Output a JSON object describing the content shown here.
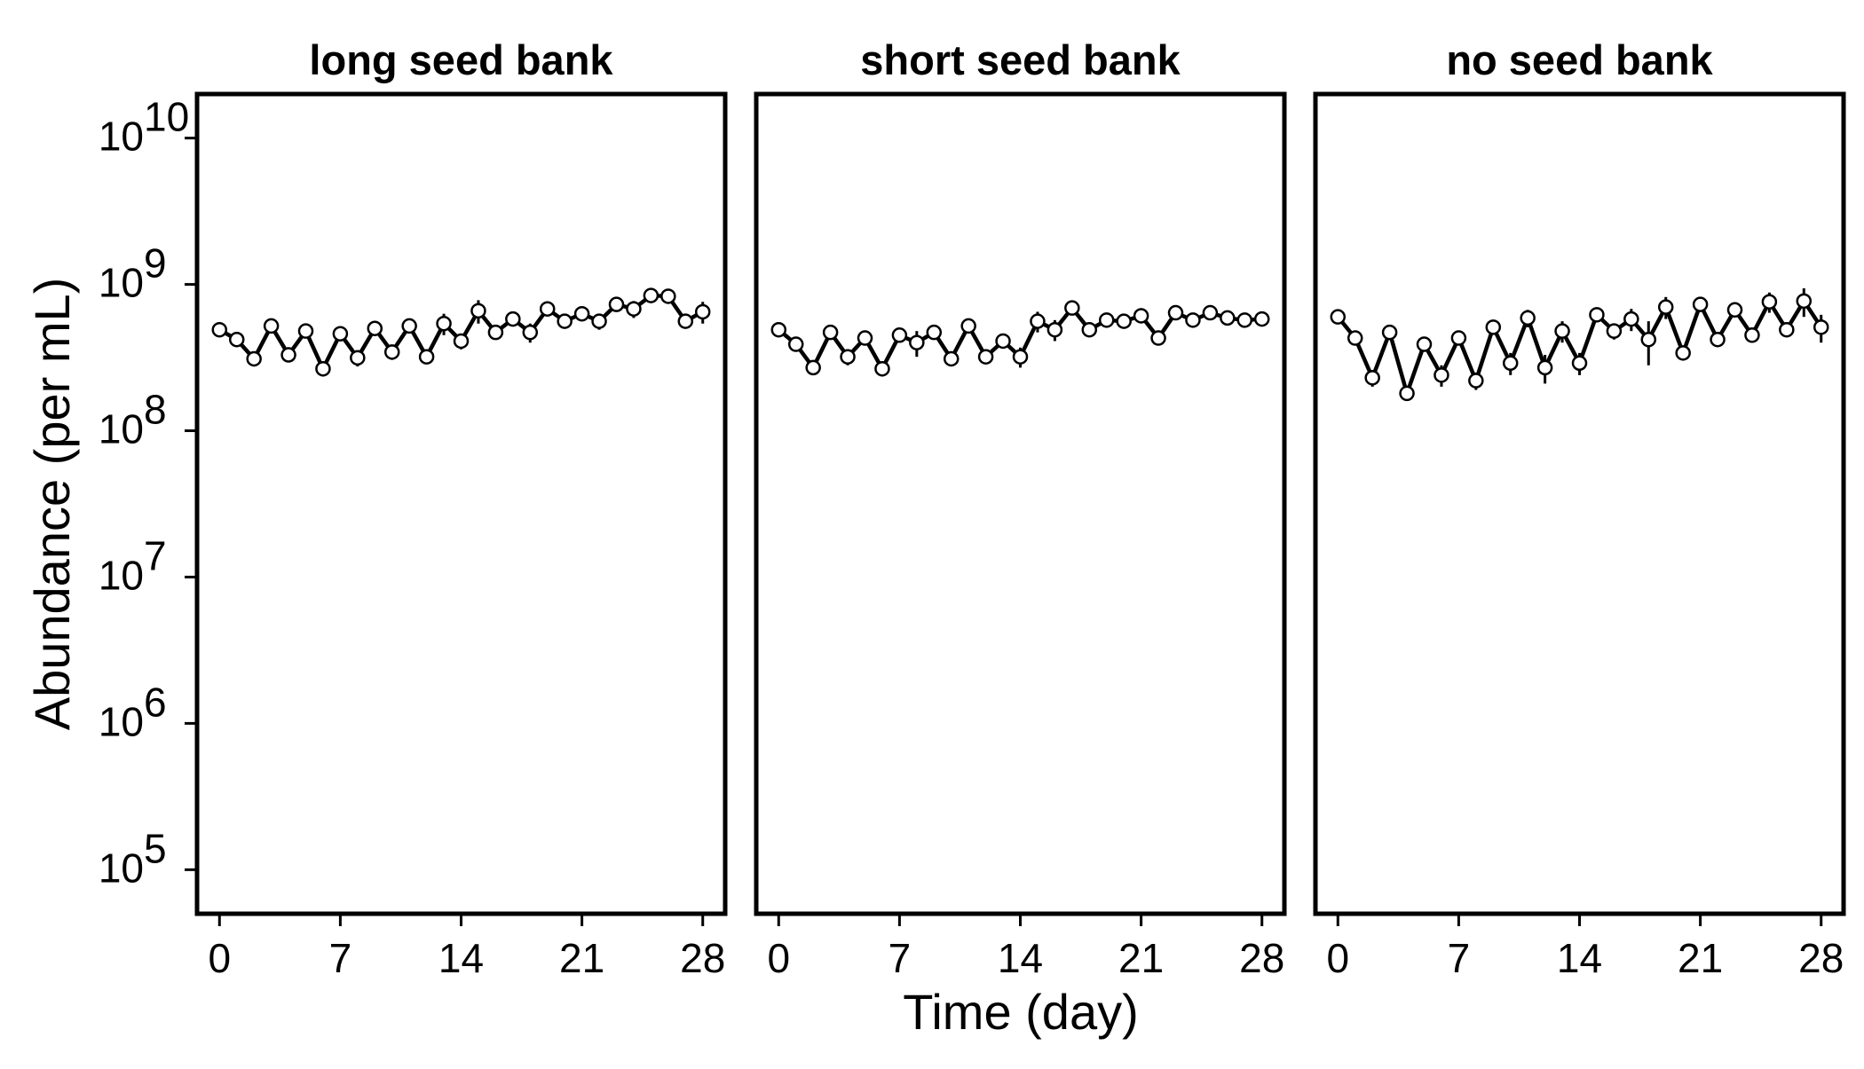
{
  "chart_data": {
    "type": "line",
    "xlabel": "Time (day)",
    "ylabel": "Abundance (per mL)",
    "y_scale": "log10",
    "ylim": [
      50000,
      20000000000
    ],
    "xlim": [
      -1.3,
      29.3
    ],
    "x_ticks": [
      0,
      7,
      14,
      21,
      28
    ],
    "x_tick_labels": [
      "0",
      "7",
      "14",
      "21",
      "28"
    ],
    "y_ticks": [
      {
        "value": 100000,
        "base": "10",
        "exp": "5"
      },
      {
        "value": 1000000,
        "base": "10",
        "exp": "6"
      },
      {
        "value": 10000000,
        "base": "10",
        "exp": "7"
      },
      {
        "value": 100000000,
        "base": "10",
        "exp": "8"
      },
      {
        "value": 1000000000,
        "base": "10",
        "exp": "9"
      },
      {
        "value": 10000000000,
        "base": "10",
        "exp": "10"
      }
    ],
    "panels": [
      {
        "title": "long seed bank",
        "x": [
          0,
          1,
          2,
          3,
          4,
          5,
          6,
          7,
          8,
          9,
          10,
          11,
          12,
          13,
          14,
          15,
          16,
          17,
          18,
          19,
          20,
          21,
          22,
          23,
          24,
          25,
          26,
          27,
          28
        ],
        "y": [
          490000000,
          420000000,
          310000000,
          520000000,
          330000000,
          480000000,
          265000000,
          460000000,
          315000000,
          500000000,
          345000000,
          520000000,
          320000000,
          540000000,
          410000000,
          660000000,
          470000000,
          580000000,
          470000000,
          680000000,
          560000000,
          630000000,
          560000000,
          730000000,
          680000000,
          840000000,
          830000000,
          560000000,
          650000000
        ],
        "err": [
          40000000,
          30000000,
          35000000,
          40000000,
          30000000,
          40000000,
          30000000,
          40000000,
          40000000,
          40000000,
          40000000,
          40000000,
          30000000,
          90000000,
          50000000,
          120000000,
          30000000,
          40000000,
          70000000,
          50000000,
          30000000,
          40000000,
          70000000,
          50000000,
          90000000,
          30000000,
          30000000,
          60000000,
          110000000
        ]
      },
      {
        "title": "short seed bank",
        "x": [
          0,
          1,
          2,
          3,
          4,
          5,
          6,
          7,
          8,
          9,
          10,
          11,
          12,
          13,
          14,
          15,
          16,
          17,
          18,
          19,
          20,
          21,
          22,
          23,
          24,
          25,
          26,
          27,
          28
        ],
        "y": [
          490000000,
          390000000,
          270000000,
          470000000,
          320000000,
          430000000,
          265000000,
          450000000,
          400000000,
          470000000,
          310000000,
          520000000,
          320000000,
          410000000,
          320000000,
          560000000,
          490000000,
          690000000,
          490000000,
          570000000,
          560000000,
          610000000,
          430000000,
          640000000,
          570000000,
          640000000,
          590000000,
          570000000,
          580000000
        ],
        "err": [
          30000000,
          30000000,
          30000000,
          40000000,
          40000000,
          40000000,
          30000000,
          40000000,
          80000000,
          40000000,
          30000000,
          40000000,
          30000000,
          40000000,
          50000000,
          90000000,
          80000000,
          60000000,
          30000000,
          30000000,
          30000000,
          40000000,
          30000000,
          40000000,
          30000000,
          30000000,
          30000000,
          20000000,
          30000000
        ]
      },
      {
        "title": "no seed bank",
        "x": [
          0,
          1,
          2,
          3,
          4,
          5,
          6,
          7,
          8,
          9,
          10,
          11,
          12,
          13,
          14,
          15,
          16,
          17,
          18,
          19,
          20,
          21,
          22,
          23,
          24,
          25,
          26,
          27,
          28
        ],
        "y": [
          600000000,
          430000000,
          230000000,
          470000000,
          180000000,
          390000000,
          240000000,
          430000000,
          220000000,
          510000000,
          290000000,
          590000000,
          270000000,
          480000000,
          290000000,
          620000000,
          480000000,
          580000000,
          420000000,
          700000000,
          340000000,
          730000000,
          420000000,
          670000000,
          450000000,
          760000000,
          490000000,
          770000000,
          510000000
        ],
        "err": [
          40000000,
          30000000,
          30000000,
          40000000,
          20000000,
          30000000,
          40000000,
          40000000,
          30000000,
          40000000,
          50000000,
          80000000,
          60000000,
          80000000,
          50000000,
          40000000,
          60000000,
          100000000,
          140000000,
          120000000,
          30000000,
          40000000,
          30000000,
          50000000,
          40000000,
          120000000,
          50000000,
          170000000,
          110000000
        ]
      }
    ]
  }
}
